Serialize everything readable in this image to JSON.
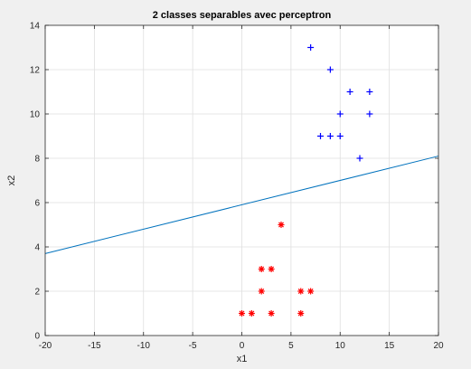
{
  "chart_data": {
    "type": "scatter",
    "title": "2 classes separables avec perceptron",
    "xlabel": "x1",
    "ylabel": "x2",
    "xlim": [
      -20,
      20
    ],
    "ylim": [
      0,
      14
    ],
    "xticks": [
      -20,
      -15,
      -10,
      -5,
      0,
      5,
      10,
      15,
      20
    ],
    "yticks": [
      0,
      2,
      4,
      6,
      8,
      10,
      12,
      14
    ],
    "grid": true,
    "series": [
      {
        "marker": "plus",
        "color": "#0000ff",
        "points": [
          [
            7,
            13
          ],
          [
            9,
            12
          ],
          [
            11,
            11
          ],
          [
            13,
            11
          ],
          [
            10,
            10
          ],
          [
            13,
            10
          ],
          [
            8,
            9
          ],
          [
            9,
            9
          ],
          [
            10,
            9
          ],
          [
            12,
            8
          ]
        ]
      },
      {
        "marker": "asterisk",
        "color": "#ff0000",
        "points": [
          [
            4,
            5
          ],
          [
            2,
            3
          ],
          [
            3,
            3
          ],
          [
            2,
            2
          ],
          [
            6,
            2
          ],
          [
            7,
            2
          ],
          [
            0,
            1
          ],
          [
            1,
            1
          ],
          [
            3,
            1
          ],
          [
            6,
            1
          ]
        ]
      }
    ],
    "lines": [
      {
        "color": "#0072bd",
        "x": [
          -20,
          20
        ],
        "y": [
          3.7,
          8.1
        ]
      }
    ]
  }
}
